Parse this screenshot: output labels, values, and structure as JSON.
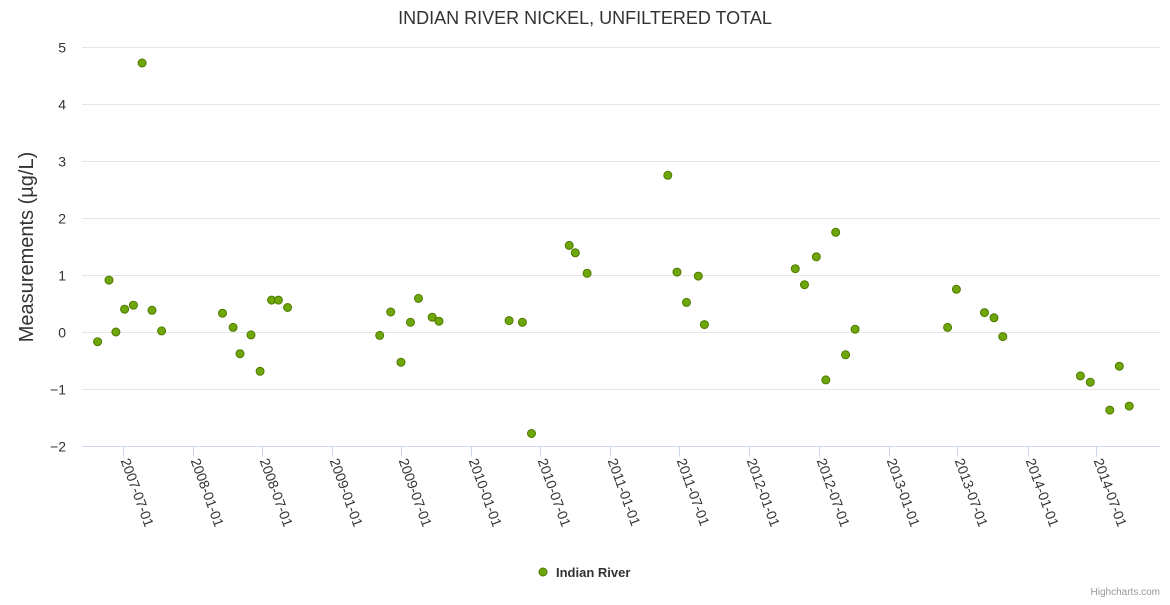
{
  "chart_data": {
    "type": "scatter",
    "title": "INDIAN RIVER NICKEL, UNFILTERED TOTAL",
    "xlabel": "",
    "ylabel": "Measurements (µg/L)",
    "ylim": [
      -2,
      5
    ],
    "yticks": [
      5,
      4,
      3,
      2,
      1,
      0,
      -1,
      -2
    ],
    "ytick_labels": [
      "5",
      "4",
      "3",
      "2",
      "1",
      "0",
      "−1",
      "−2"
    ],
    "xlim": [
      "2007-03-15",
      "2014-12-15"
    ],
    "xticks": [
      "2007-07-01",
      "2008-01-01",
      "2008-07-01",
      "2009-01-01",
      "2009-07-01",
      "2010-01-01",
      "2010-07-01",
      "2011-01-01",
      "2011-07-01",
      "2012-01-01",
      "2012-07-01",
      "2013-01-01",
      "2013-07-01",
      "2014-01-01",
      "2014-07-01"
    ],
    "grid": true,
    "legend": "bottom-center",
    "series": [
      {
        "name": "Indian River",
        "color": "#6fa60a",
        "marker_stroke": "#4d7a00",
        "points": [
          {
            "x": "2007-04-25",
            "y": -0.17
          },
          {
            "x": "2007-05-25",
            "y": 0.91
          },
          {
            "x": "2007-06-12",
            "y": 0.0
          },
          {
            "x": "2007-07-05",
            "y": 0.4
          },
          {
            "x": "2007-07-28",
            "y": 0.47
          },
          {
            "x": "2007-08-20",
            "y": 4.72
          },
          {
            "x": "2007-09-15",
            "y": 0.38
          },
          {
            "x": "2007-10-10",
            "y": 0.02
          },
          {
            "x": "2008-03-18",
            "y": 0.33
          },
          {
            "x": "2008-04-15",
            "y": 0.08
          },
          {
            "x": "2008-05-03",
            "y": -0.38
          },
          {
            "x": "2008-06-01",
            "y": -0.05
          },
          {
            "x": "2008-06-25",
            "y": -0.69
          },
          {
            "x": "2008-07-25",
            "y": 0.56
          },
          {
            "x": "2008-08-12",
            "y": 0.56
          },
          {
            "x": "2008-09-05",
            "y": 0.43
          },
          {
            "x": "2009-05-05",
            "y": -0.06
          },
          {
            "x": "2009-06-03",
            "y": 0.35
          },
          {
            "x": "2009-06-30",
            "y": -0.53
          },
          {
            "x": "2009-07-25",
            "y": 0.17
          },
          {
            "x": "2009-08-15",
            "y": 0.59
          },
          {
            "x": "2009-09-20",
            "y": 0.26
          },
          {
            "x": "2009-10-08",
            "y": 0.19
          },
          {
            "x": "2010-04-10",
            "y": 0.2
          },
          {
            "x": "2010-05-15",
            "y": 0.17
          },
          {
            "x": "2010-06-08",
            "y": -1.78
          },
          {
            "x": "2010-09-15",
            "y": 1.52
          },
          {
            "x": "2010-10-01",
            "y": 1.39
          },
          {
            "x": "2010-11-01",
            "y": 1.03
          },
          {
            "x": "2011-06-01",
            "y": 2.75
          },
          {
            "x": "2011-06-25",
            "y": 1.05
          },
          {
            "x": "2011-07-20",
            "y": 0.52
          },
          {
            "x": "2011-08-20",
            "y": 0.98
          },
          {
            "x": "2011-09-05",
            "y": 0.13
          },
          {
            "x": "2012-05-01",
            "y": 1.11
          },
          {
            "x": "2012-05-25",
            "y": 0.83
          },
          {
            "x": "2012-06-25",
            "y": 1.32
          },
          {
            "x": "2012-07-20",
            "y": -0.84
          },
          {
            "x": "2012-08-15",
            "y": 1.75
          },
          {
            "x": "2012-09-10",
            "y": -0.4
          },
          {
            "x": "2012-10-05",
            "y": 0.05
          },
          {
            "x": "2013-06-05",
            "y": 0.08
          },
          {
            "x": "2013-06-28",
            "y": 0.75
          },
          {
            "x": "2013-09-10",
            "y": 0.34
          },
          {
            "x": "2013-10-05",
            "y": 0.25
          },
          {
            "x": "2013-10-28",
            "y": -0.08
          },
          {
            "x": "2014-05-20",
            "y": -0.77
          },
          {
            "x": "2014-06-15",
            "y": -0.88
          },
          {
            "x": "2014-08-05",
            "y": -1.37
          },
          {
            "x": "2014-08-30",
            "y": -0.6
          },
          {
            "x": "2014-09-25",
            "y": -1.3
          }
        ]
      }
    ],
    "credits": "Highcharts.com"
  }
}
